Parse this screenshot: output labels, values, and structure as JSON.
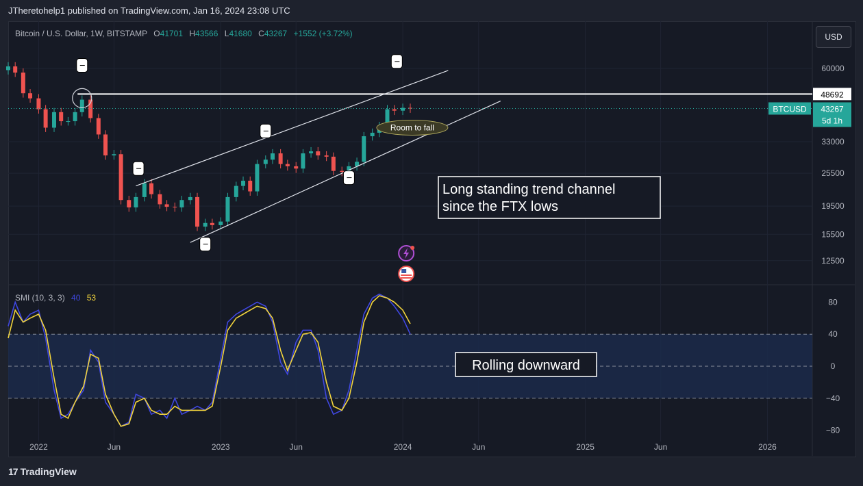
{
  "header": {
    "publisher": "JTheretohelp1 published on TradingView.com, Jan 16, 2024 23:08 UTC"
  },
  "legend": {
    "symbol": "Bitcoin / U.S. Dollar, 1W, BITSTAMP",
    "o_label": "O",
    "o_value": "41701",
    "h_label": "H",
    "h_value": "43566",
    "l_label": "L",
    "l_value": "41680",
    "c_label": "C",
    "c_value": "43267",
    "change": "+1552 (+3.72%)"
  },
  "currency_button": "USD",
  "price_tags": {
    "level": "48692",
    "symbol": "BTCUSD",
    "price": "43267",
    "countdown": "5d 1h"
  },
  "annotations": {
    "room_to_fall": "Room to fall",
    "channel_line1": "Long standing trend channel",
    "channel_line2": "since the FTX lows",
    "rolling": "Rolling downward"
  },
  "smi_legend": {
    "name": "SMI (10, 3, 3)",
    "blue_value": "40",
    "yellow_value": "53"
  },
  "footer": {
    "logo_mark": "17",
    "logo_text": "TradingView"
  },
  "colors": {
    "up": "#26a69a",
    "down": "#ef5350",
    "smi_blue": "#3f47e0",
    "smi_yellow": "#f2d43d",
    "band_fill": "#1b2a4a",
    "background": "#161a25"
  },
  "chart_data": [
    {
      "type": "candlestick",
      "title": "Bitcoin / U.S. Dollar, 1W, BITSTAMP",
      "scale": "log",
      "x_ticks": [
        "2022",
        "Jun",
        "2023",
        "Jun",
        "2024",
        "Jun",
        "2025",
        "Jun",
        "2026"
      ],
      "y_ticks": [
        60000,
        48692,
        33000,
        25500,
        19500,
        15500,
        12500
      ],
      "y_tick_labels": [
        "60000",
        "33000",
        "25500",
        "19500",
        "15500",
        "12500"
      ],
      "ylim": [
        10500,
        75000
      ],
      "series_close": [
        [
          "2021-11-01",
          61000
        ],
        [
          "2021-11-15",
          58000
        ],
        [
          "2021-12-01",
          49000
        ],
        [
          "2021-12-15",
          47000
        ],
        [
          "2022-01-01",
          43000
        ],
        [
          "2022-01-15",
          37000
        ],
        [
          "2022-02-01",
          42000
        ],
        [
          "2022-02-15",
          39000
        ],
        [
          "2022-03-01",
          39000
        ],
        [
          "2022-03-15",
          42000
        ],
        [
          "2022-03-29",
          46500
        ],
        [
          "2022-04-15",
          40000
        ],
        [
          "2022-05-01",
          35000
        ],
        [
          "2022-05-15",
          29500
        ],
        [
          "2022-06-01",
          29800
        ],
        [
          "2022-06-15",
          20500
        ],
        [
          "2022-07-01",
          19300
        ],
        [
          "2022-07-15",
          21000
        ],
        [
          "2022-08-01",
          23500
        ],
        [
          "2022-08-15",
          21500
        ],
        [
          "2022-09-01",
          19800
        ],
        [
          "2022-09-15",
          19400
        ],
        [
          "2022-10-01",
          19300
        ],
        [
          "2022-10-15",
          20500
        ],
        [
          "2022-11-01",
          21000
        ],
        [
          "2022-11-15",
          16500
        ],
        [
          "2022-12-01",
          17000
        ],
        [
          "2022-12-15",
          16700
        ],
        [
          "2023-01-01",
          17200
        ],
        [
          "2023-01-15",
          21000
        ],
        [
          "2023-02-01",
          23000
        ],
        [
          "2023-02-15",
          24000
        ],
        [
          "2023-03-01",
          22000
        ],
        [
          "2023-03-15",
          27500
        ],
        [
          "2023-04-01",
          28500
        ],
        [
          "2023-04-15",
          30000
        ],
        [
          "2023-05-01",
          27500
        ],
        [
          "2023-05-15",
          27000
        ],
        [
          "2023-06-01",
          26500
        ],
        [
          "2023-06-15",
          30000
        ],
        [
          "2023-07-01",
          30500
        ],
        [
          "2023-07-15",
          29500
        ],
        [
          "2023-08-01",
          29200
        ],
        [
          "2023-08-15",
          26000
        ],
        [
          "2023-09-01",
          25800
        ],
        [
          "2023-09-15",
          27000
        ],
        [
          "2023-10-01",
          28000
        ],
        [
          "2023-10-15",
          34500
        ],
        [
          "2023-11-01",
          35500
        ],
        [
          "2023-11-15",
          37500
        ],
        [
          "2023-12-01",
          43000
        ],
        [
          "2023-12-15",
          42500
        ],
        [
          "2024-01-01",
          43500
        ],
        [
          "2024-01-16",
          43267
        ]
      ],
      "horizontal_level": 48692,
      "trend_channel": {
        "lower": [
          [
            "2022-11-01",
            14500
          ],
          [
            "2024-07-15",
            46000
          ]
        ],
        "upper": [
          [
            "2022-07-15",
            23000
          ],
          [
            "2024-04-01",
            59000
          ]
        ]
      }
    },
    {
      "type": "line",
      "title": "SMI (10, 3, 3)",
      "ylim": [
        -100,
        100
      ],
      "y_ticks": [
        80,
        40,
        0,
        -40,
        -80
      ],
      "band": [
        -40,
        40
      ],
      "series": [
        {
          "name": "40",
          "color": "#3f47e0",
          "points": [
            [
              "2021-11-01",
              50
            ],
            [
              "2021-11-15",
              80
            ],
            [
              "2021-12-01",
              55
            ],
            [
              "2021-12-15",
              65
            ],
            [
              "2022-01-01",
              70
            ],
            [
              "2022-01-15",
              35
            ],
            [
              "2022-02-01",
              -30
            ],
            [
              "2022-02-15",
              -65
            ],
            [
              "2022-03-01",
              -60
            ],
            [
              "2022-03-15",
              -45
            ],
            [
              "2022-04-01",
              -30
            ],
            [
              "2022-04-15",
              20
            ],
            [
              "2022-05-01",
              5
            ],
            [
              "2022-05-15",
              -45
            ],
            [
              "2022-06-01",
              -60
            ],
            [
              "2022-06-15",
              -75
            ],
            [
              "2022-07-01",
              -70
            ],
            [
              "2022-07-15",
              -35
            ],
            [
              "2022-08-01",
              -40
            ],
            [
              "2022-08-15",
              -60
            ],
            [
              "2022-09-01",
              -55
            ],
            [
              "2022-09-15",
              -65
            ],
            [
              "2022-10-01",
              -40
            ],
            [
              "2022-10-15",
              -60
            ],
            [
              "2022-11-01",
              -55
            ],
            [
              "2022-11-15",
              -50
            ],
            [
              "2022-12-01",
              -55
            ],
            [
              "2022-12-15",
              -45
            ],
            [
              "2023-01-01",
              10
            ],
            [
              "2023-01-15",
              55
            ],
            [
              "2023-02-01",
              65
            ],
            [
              "2023-02-15",
              70
            ],
            [
              "2023-03-01",
              75
            ],
            [
              "2023-03-15",
              80
            ],
            [
              "2023-04-01",
              75
            ],
            [
              "2023-04-15",
              55
            ],
            [
              "2023-05-01",
              5
            ],
            [
              "2023-05-15",
              -10
            ],
            [
              "2023-06-01",
              30
            ],
            [
              "2023-06-15",
              45
            ],
            [
              "2023-07-01",
              45
            ],
            [
              "2023-07-15",
              20
            ],
            [
              "2023-08-01",
              -40
            ],
            [
              "2023-08-15",
              -60
            ],
            [
              "2023-09-01",
              -55
            ],
            [
              "2023-09-15",
              -30
            ],
            [
              "2023-10-01",
              20
            ],
            [
              "2023-10-15",
              65
            ],
            [
              "2023-11-01",
              85
            ],
            [
              "2023-11-15",
              90
            ],
            [
              "2023-12-01",
              85
            ],
            [
              "2023-12-15",
              75
            ],
            [
              "2024-01-01",
              60
            ],
            [
              "2024-01-16",
              40
            ]
          ]
        },
        {
          "name": "53",
          "color": "#f2d43d",
          "points": [
            [
              "2021-11-01",
              35
            ],
            [
              "2021-11-15",
              70
            ],
            [
              "2021-12-01",
              55
            ],
            [
              "2021-12-15",
              60
            ],
            [
              "2022-01-01",
              65
            ],
            [
              "2022-01-15",
              45
            ],
            [
              "2022-02-01",
              -15
            ],
            [
              "2022-02-15",
              -60
            ],
            [
              "2022-03-01",
              -65
            ],
            [
              "2022-03-15",
              -45
            ],
            [
              "2022-04-01",
              -25
            ],
            [
              "2022-04-15",
              15
            ],
            [
              "2022-05-01",
              10
            ],
            [
              "2022-05-15",
              -35
            ],
            [
              "2022-06-01",
              -60
            ],
            [
              "2022-06-15",
              -75
            ],
            [
              "2022-07-01",
              -72
            ],
            [
              "2022-07-15",
              -45
            ],
            [
              "2022-08-01",
              -40
            ],
            [
              "2022-08-15",
              -55
            ],
            [
              "2022-09-01",
              -60
            ],
            [
              "2022-09-15",
              -60
            ],
            [
              "2022-10-01",
              -50
            ],
            [
              "2022-10-15",
              -55
            ],
            [
              "2022-11-01",
              -55
            ],
            [
              "2022-11-15",
              -55
            ],
            [
              "2022-12-01",
              -55
            ],
            [
              "2022-12-15",
              -50
            ],
            [
              "2023-01-01",
              0
            ],
            [
              "2023-01-15",
              45
            ],
            [
              "2023-02-01",
              60
            ],
            [
              "2023-02-15",
              65
            ],
            [
              "2023-03-01",
              70
            ],
            [
              "2023-03-15",
              75
            ],
            [
              "2023-04-01",
              72
            ],
            [
              "2023-04-15",
              60
            ],
            [
              "2023-05-01",
              20
            ],
            [
              "2023-05-15",
              -5
            ],
            [
              "2023-06-01",
              20
            ],
            [
              "2023-06-15",
              40
            ],
            [
              "2023-07-01",
              42
            ],
            [
              "2023-07-15",
              30
            ],
            [
              "2023-08-01",
              -20
            ],
            [
              "2023-08-15",
              -50
            ],
            [
              "2023-09-01",
              -55
            ],
            [
              "2023-09-15",
              -40
            ],
            [
              "2023-10-01",
              5
            ],
            [
              "2023-10-15",
              55
            ],
            [
              "2023-11-01",
              80
            ],
            [
              "2023-11-15",
              88
            ],
            [
              "2023-12-01",
              85
            ],
            [
              "2023-12-15",
              80
            ],
            [
              "2024-01-01",
              70
            ],
            [
              "2024-01-16",
              53
            ]
          ]
        }
      ]
    }
  ]
}
